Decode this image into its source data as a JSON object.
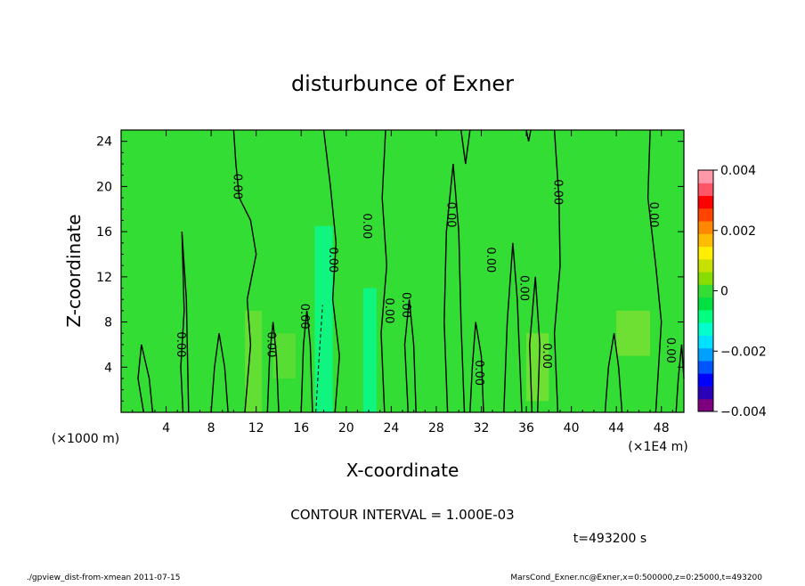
{
  "chart_data": {
    "type": "heatmap",
    "title": "disturbunce of Exner",
    "xlabel": "X-coordinate",
    "ylabel": "Z-coordinate",
    "x_unit_left": "(×1000 m)",
    "x_unit_right": "(×1E4 m)",
    "xlim": [
      0,
      50
    ],
    "ylim": [
      0,
      25
    ],
    "x_ticks": [
      "4",
      "8",
      "12",
      "16",
      "20",
      "24",
      "28",
      "32",
      "36",
      "40",
      "44",
      "48"
    ],
    "x_tick_values": [
      4,
      8,
      12,
      16,
      20,
      24,
      28,
      32,
      36,
      40,
      44,
      48
    ],
    "y_ticks": [
      "4",
      "8",
      "12",
      "16",
      "20",
      "24"
    ],
    "y_tick_values": [
      4,
      8,
      12,
      16,
      20,
      24
    ],
    "colorbar": {
      "min": -0.004,
      "max": 0.004,
      "labels": [
        "0.004",
        "0.002",
        "0",
        "−0.002",
        "−0.004"
      ],
      "label_values": [
        0.004,
        0.002,
        0,
        -0.002,
        -0.004
      ],
      "colors": [
        "#7f007f",
        "#2a00b8",
        "#0000ff",
        "#0055ff",
        "#00a0ff",
        "#00e0ff",
        "#00ffcc",
        "#00ff80",
        "#00e040",
        "#33dd33",
        "#88dd00",
        "#c8e000",
        "#ffee00",
        "#ffbb00",
        "#ff8800",
        "#ff4400",
        "#ff0000",
        "#ff5566",
        "#ff99aa"
      ]
    },
    "background_color": "#33dd33",
    "contour_labels": [
      {
        "text": "0.00",
        "x": 10,
        "z": 20
      },
      {
        "text": "0.00",
        "x": 5,
        "z": 6
      },
      {
        "text": "0.00",
        "x": 13,
        "z": 6
      },
      {
        "text": "0.00",
        "x": 16,
        "z": 8.5
      },
      {
        "text": "0.00",
        "x": 18.5,
        "z": 13.5
      },
      {
        "text": "0.00",
        "x": 21.5,
        "z": 16.5
      },
      {
        "text": "0.00",
        "x": 23.5,
        "z": 9
      },
      {
        "text": "0.00",
        "x": 25,
        "z": 9.5
      },
      {
        "text": "0.00",
        "x": 29,
        "z": 17.5
      },
      {
        "text": "0.00",
        "x": 31.5,
        "z": 3.5
      },
      {
        "text": "0.00",
        "x": 32.5,
        "z": 13.5
      },
      {
        "text": "0.00",
        "x": 35.5,
        "z": 11
      },
      {
        "text": "0.00",
        "x": 37.5,
        "z": 5
      },
      {
        "text": "0.00",
        "x": 38.5,
        "z": 19.5
      },
      {
        "text": "0.00",
        "x": 47,
        "z": 17.5
      },
      {
        "text": "0.00",
        "x": 48.5,
        "z": 5.5
      }
    ],
    "contour_interval": "CONTOUR INTERVAL = 1.000E-03",
    "time_label": "t=493200 s"
  },
  "footer": {
    "left": "./gpview_dist-from-xmean   2011-07-15",
    "right": "MarsCond_Exner.nc@Exner,x=0:500000,z=0:25000,t=493200"
  }
}
